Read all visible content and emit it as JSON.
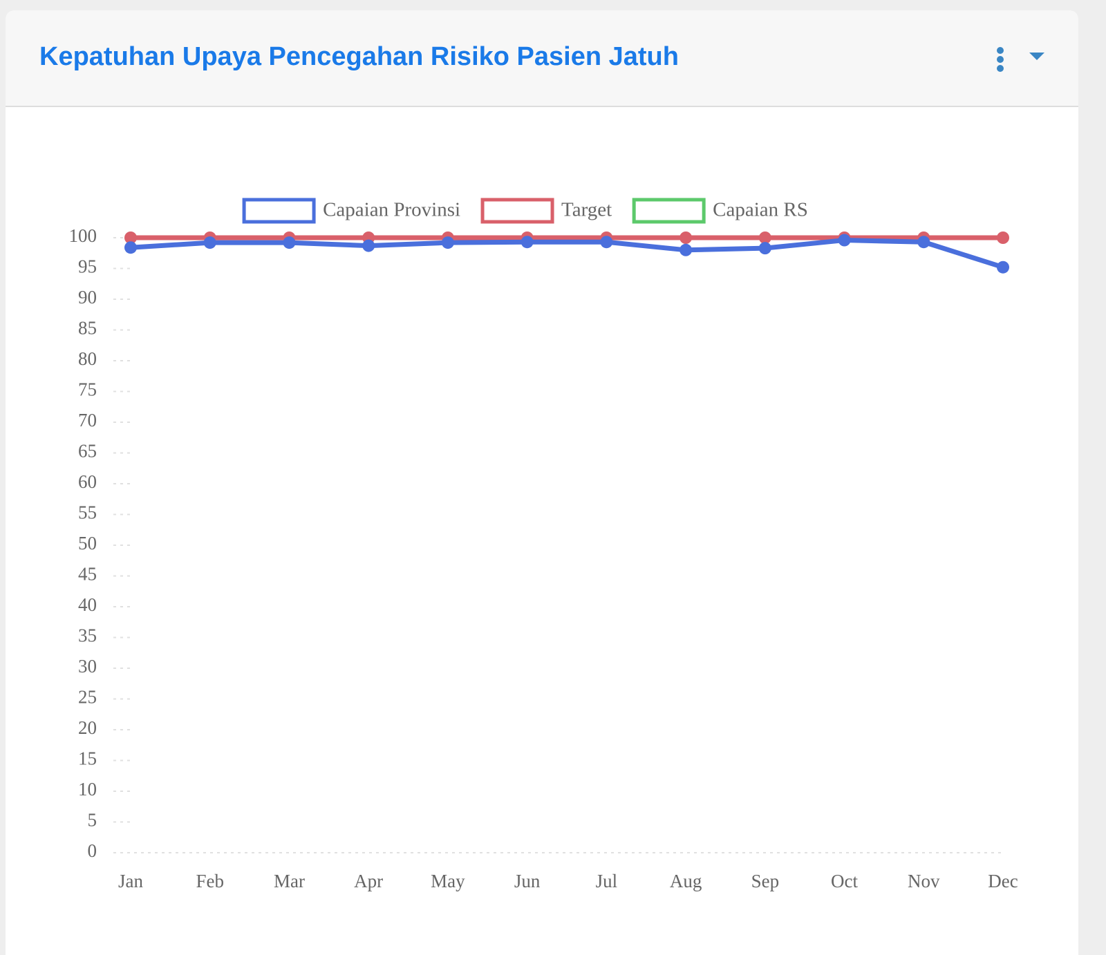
{
  "chart_data": {
    "type": "line",
    "title": "Kepatuhan Upaya Pencegahan Risiko Pasien Jatuh",
    "categories": [
      "Jan",
      "Feb",
      "Mar",
      "Apr",
      "May",
      "Jun",
      "Jul",
      "Aug",
      "Sep",
      "Oct",
      "Nov",
      "Dec"
    ],
    "series": [
      {
        "name": "Capaian Provinsi",
        "color": "#4a6fdc",
        "values": [
          98.4,
          99.2,
          99.2,
          98.7,
          99.2,
          99.3,
          99.3,
          98.0,
          98.3,
          99.6,
          99.3,
          95.2
        ]
      },
      {
        "name": "Target",
        "color": "#d9606a",
        "values": [
          100,
          100,
          100,
          100,
          100,
          100,
          100,
          100,
          100,
          100,
          100,
          100
        ]
      },
      {
        "name": "Capaian RS",
        "color": "#5cc96b",
        "values": [
          null,
          null,
          null,
          null,
          null,
          null,
          null,
          null,
          null,
          null,
          null,
          null
        ]
      }
    ],
    "ylim": [
      0,
      100
    ],
    "yticks": [
      0,
      5,
      10,
      15,
      20,
      25,
      30,
      35,
      40,
      45,
      50,
      55,
      60,
      65,
      70,
      75,
      80,
      85,
      90,
      95,
      100
    ],
    "legend": "top"
  }
}
